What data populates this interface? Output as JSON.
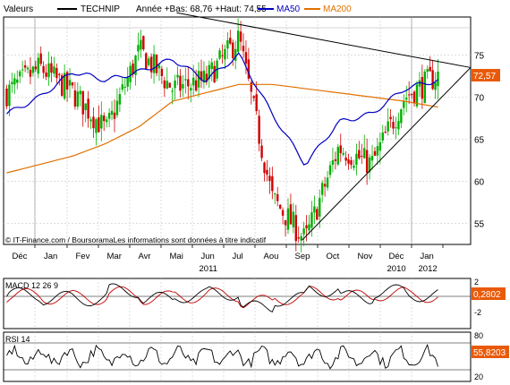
{
  "header": {
    "label": "Valeurs",
    "ticker": "TECHNIP",
    "range_text": "Année +Bas: 68,76 +Haut: 74,55",
    "ma50_label": "MA50",
    "ma200_label": "MA200"
  },
  "colors": {
    "up": "#00b000",
    "down": "#d00000",
    "ma50": "#0000c0",
    "ma200": "#e07000",
    "badge": "#e85a0a"
  },
  "footer_text": "© IT-Finance.com / BoursoramaLes informations sont données à titre indicatif",
  "chart_data": [
    {
      "type": "candlestick",
      "title": "",
      "x_labels": [
        "Déc",
        "Jan",
        "Fev",
        "Mar",
        "Avr",
        "Mai",
        "Jun",
        "Jul",
        "Aou",
        "Sep",
        "Oct",
        "Nov",
        "Déc",
        "Jan"
      ],
      "year_labels": [
        {
          "label": "2010",
          "under": "Déc"
        },
        {
          "label": "2011",
          "under": "Jun"
        },
        {
          "label": "2012",
          "under": "Jan"
        }
      ],
      "y_ticks": [
        55,
        60,
        65,
        70,
        75
      ],
      "ylim": [
        52.5,
        79.5
      ],
      "last_value": "72,57",
      "monthly_close": [
        70.5,
        73.5,
        70.5,
        66,
        75.5,
        71,
        72,
        77,
        58,
        53,
        64,
        62,
        70,
        72.6
      ],
      "ma50": [
        68,
        70,
        73,
        72,
        73,
        74.5,
        72,
        75,
        68,
        62,
        67,
        68,
        71,
        72
      ],
      "ma200": [
        61,
        62,
        63,
        64.5,
        66.5,
        69.5,
        70.5,
        71.5,
        71.5,
        71,
        70.5,
        70,
        69.5,
        68.8
      ],
      "trendlines": [
        {
          "from": [
            "Mai",
            80
          ],
          "to": [
            "Jan",
            73.5
          ]
        },
        {
          "from": [
            "Sep",
            53
          ],
          "to": [
            "Jan",
            73.5
          ]
        }
      ]
    },
    {
      "type": "line",
      "name_label": "MACD 12 26 9",
      "y_ticks": [
        2,
        -2
      ],
      "last_value": "0,2802"
    },
    {
      "type": "line",
      "name_label": "RSI 14",
      "y_ticks": [
        80,
        20
      ],
      "last_value": "55,8203"
    }
  ]
}
